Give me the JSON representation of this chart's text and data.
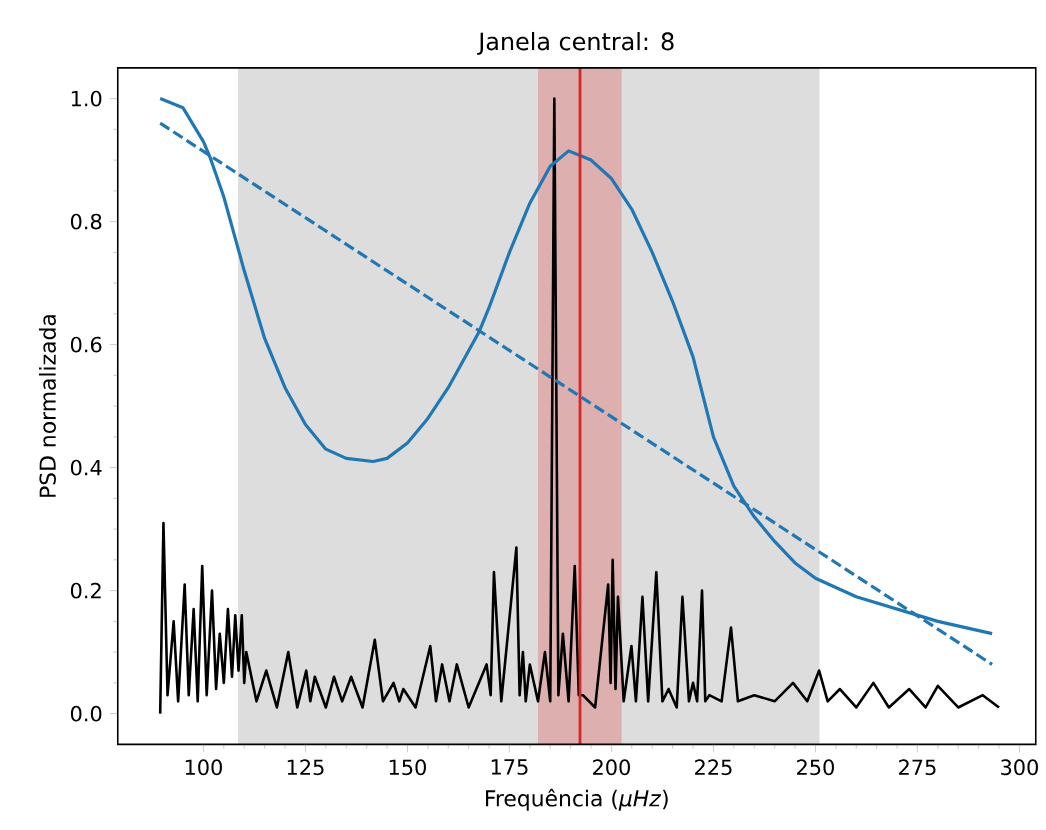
{
  "chart_data": {
    "type": "line",
    "title": "Janela central: 8",
    "xlabel": "Frequência (*μHz*)",
    "ylabel": "PSD normalizada",
    "xlim": [
      79,
      304
    ],
    "ylim": [
      -0.05,
      1.05
    ],
    "xticks": [
      100,
      125,
      150,
      175,
      200,
      225,
      250,
      275,
      300
    ],
    "yticks": [
      {
        "value": 0,
        "label": "0.0"
      },
      {
        "value": 0.2,
        "label": "0.2"
      },
      {
        "value": 0.4,
        "label": "0.4"
      },
      {
        "value": 0.6,
        "label": "0.6"
      },
      {
        "value": 0.8,
        "label": "0.8"
      },
      {
        "value": 1.0,
        "label": "1.0"
      }
    ],
    "bands": [
      {
        "axis": "x",
        "from": 108.5,
        "to": 251,
        "color": "#dddddd"
      },
      {
        "axis": "x",
        "from": 182,
        "to": 202.5,
        "color": "#ddafaf"
      }
    ],
    "series": [
      {
        "color": "#000000",
        "x": [
          89.4,
          90.2,
          91.2,
          92.7,
          93.8,
          95.4,
          96.4,
          97.6,
          98.6,
          99.7,
          100.8,
          102.1,
          103.1,
          104,
          105,
          106,
          107,
          107.8,
          108.6,
          109.4,
          110,
          110.5,
          113,
          115.4,
          118,
          120.8,
          123,
          125.2,
          126.2,
          127.3,
          130,
          132,
          134,
          136.2,
          139,
          142,
          144,
          146.6,
          148,
          149,
          152,
          155.6,
          157,
          158.5,
          160.3,
          162.1,
          165,
          169.4,
          170.4,
          171.2,
          173,
          176.7,
          177.5,
          178.3,
          179,
          180,
          182,
          183.7,
          185,
          186,
          187,
          188.1,
          189.5,
          191,
          192,
          193,
          196,
          199.2,
          199.8,
          200.3,
          201,
          201.6,
          203,
          204.9,
          206,
          207.6,
          209,
          211,
          212.5,
          214,
          216,
          217.4,
          219,
          220,
          221,
          222.2,
          223,
          224,
          227,
          229.3,
          231,
          235,
          240,
          244.5,
          248,
          250.9,
          253,
          256,
          260,
          264.2,
          268,
          273,
          277,
          280,
          285,
          291,
          295
        ],
        "values": [
          0.0,
          0.31,
          0.03,
          0.15,
          0.02,
          0.21,
          0.03,
          0.17,
          0.02,
          0.24,
          0.03,
          0.2,
          0.04,
          0.13,
          0.05,
          0.17,
          0.06,
          0.16,
          0.07,
          0.16,
          0.05,
          0.1,
          0.02,
          0.07,
          0.01,
          0.1,
          0.01,
          0.07,
          0.02,
          0.06,
          0.01,
          0.06,
          0.02,
          0.06,
          0.01,
          0.12,
          0.02,
          0.05,
          0.02,
          0.04,
          0.01,
          0.11,
          0.02,
          0.08,
          0.02,
          0.08,
          0.01,
          0.08,
          0.03,
          0.23,
          0.02,
          0.27,
          0.03,
          0.1,
          0.02,
          0.08,
          0.02,
          0.1,
          0.02,
          1.0,
          0.03,
          0.13,
          0.02,
          0.24,
          0.03,
          0.03,
          0.01,
          0.21,
          0.05,
          0.25,
          0.04,
          0.19,
          0.02,
          0.11,
          0.02,
          0.19,
          0.02,
          0.23,
          0.02,
          0.04,
          0.01,
          0.19,
          0.02,
          0.05,
          0.02,
          0.2,
          0.02,
          0.03,
          0.02,
          0.14,
          0.02,
          0.03,
          0.02,
          0.05,
          0.02,
          0.07,
          0.02,
          0.04,
          0.01,
          0.05,
          0.01,
          0.04,
          0.01,
          0.045,
          0.01,
          0.03,
          0.01
        ]
      },
      {
        "color": "#1f77b4",
        "x": [
          89.4,
          95,
          100,
          101.6,
          105,
          110,
          115,
          120,
          125,
          130,
          135,
          141.6,
          145,
          150,
          155,
          160,
          165,
          167.5,
          170,
          175,
          180,
          185,
          189.5,
          195,
          200,
          205,
          210,
          215,
          220,
          225,
          230,
          235,
          240,
          245,
          250,
          260,
          270,
          280,
          293.3
        ],
        "values": [
          1.0,
          0.985,
          0.93,
          0.905,
          0.84,
          0.72,
          0.61,
          0.53,
          0.47,
          0.43,
          0.415,
          0.41,
          0.415,
          0.44,
          0.48,
          0.53,
          0.59,
          0.62,
          0.66,
          0.75,
          0.83,
          0.89,
          0.915,
          0.9,
          0.87,
          0.82,
          0.75,
          0.67,
          0.58,
          0.45,
          0.37,
          0.32,
          0.28,
          0.245,
          0.22,
          0.19,
          0.17,
          0.15,
          0.13
        ]
      },
      {
        "color": "#1f77b4",
        "line_style": "dashed",
        "x": [
          89.4,
          293.3
        ],
        "values": [
          0.96,
          0.08
        ]
      }
    ],
    "ref_lines": [
      {
        "axis": "x",
        "value": 192.3,
        "color": "#d62728"
      }
    ]
  }
}
